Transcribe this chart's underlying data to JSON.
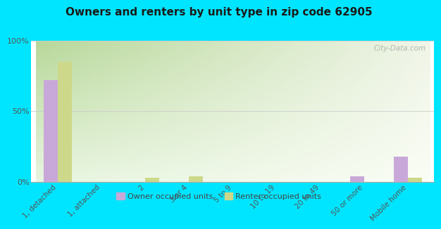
{
  "title": "Owners and renters by unit type in zip code 62905",
  "categories": [
    "1, detached",
    "1, attached",
    "2",
    "3 or 4",
    "5 to 9",
    "10 to 19",
    "20 to 49",
    "50 or more",
    "Mobile home"
  ],
  "owner_values": [
    72,
    0,
    0,
    0,
    0,
    0,
    0,
    4,
    18
  ],
  "renter_values": [
    85,
    0,
    3,
    4,
    0,
    0,
    0,
    0,
    3
  ],
  "owner_color": "#c8a8d8",
  "renter_color": "#cdd88a",
  "background_color": "#00e5ff",
  "plot_bg_tl": "#b8d89a",
  "plot_bg_tr": "#f0f5e8",
  "plot_bg_bl": "#e0eec8",
  "plot_bg_br": "#fafdf5",
  "ylabel_ticks": [
    "0%",
    "50%",
    "100%"
  ],
  "ytick_values": [
    0,
    50,
    100
  ],
  "ylim": [
    0,
    100
  ],
  "title_fontsize": 11,
  "legend_owner": "Owner occupied units",
  "legend_renter": "Renter occupied units",
  "watermark": "City-Data.com"
}
